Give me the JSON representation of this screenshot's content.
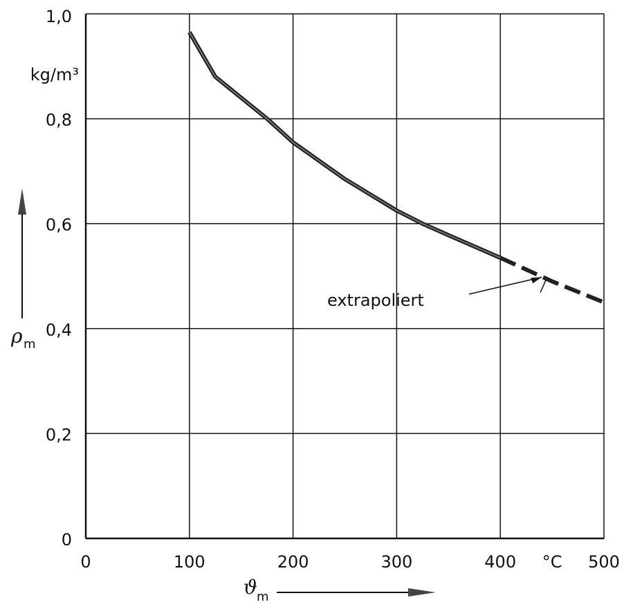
{
  "chart_data": {
    "type": "line",
    "title": "",
    "xlabel": {
      "symbol": "ϑ",
      "subscript": "m"
    },
    "ylabel": {
      "symbol": "ρ",
      "subscript": "m"
    },
    "x_unit": "°C",
    "y_unit": "kg/m³",
    "xlim": [
      0,
      500
    ],
    "ylim": [
      0,
      1.0
    ],
    "x_ticks": [
      0,
      100,
      200,
      300,
      400,
      500
    ],
    "x_tick_labels": [
      "0",
      "100",
      "200",
      "300",
      "400",
      "500"
    ],
    "y_ticks": [
      0,
      0.2,
      0.4,
      0.6,
      0.8,
      1.0
    ],
    "y_tick_labels": [
      "0",
      "0,2",
      "0,4",
      "0,6",
      "0,8",
      "1,0"
    ],
    "grid": true,
    "series": [
      {
        "style": "solid",
        "x": [
          100,
          125,
          150,
          175,
          200,
          250,
          300,
          325,
          350,
          400
        ],
        "y": [
          0.965,
          0.88,
          0.84,
          0.8,
          0.755,
          0.685,
          0.625,
          0.6,
          0.578,
          0.535
        ]
      },
      {
        "style": "dashed",
        "x": [
          400,
          450,
          500
        ],
        "y": [
          0.535,
          0.49,
          0.45
        ]
      }
    ],
    "annotations": [
      {
        "text": "extrapoliert",
        "target_x": 440,
        "target_y": 0.498
      }
    ]
  }
}
